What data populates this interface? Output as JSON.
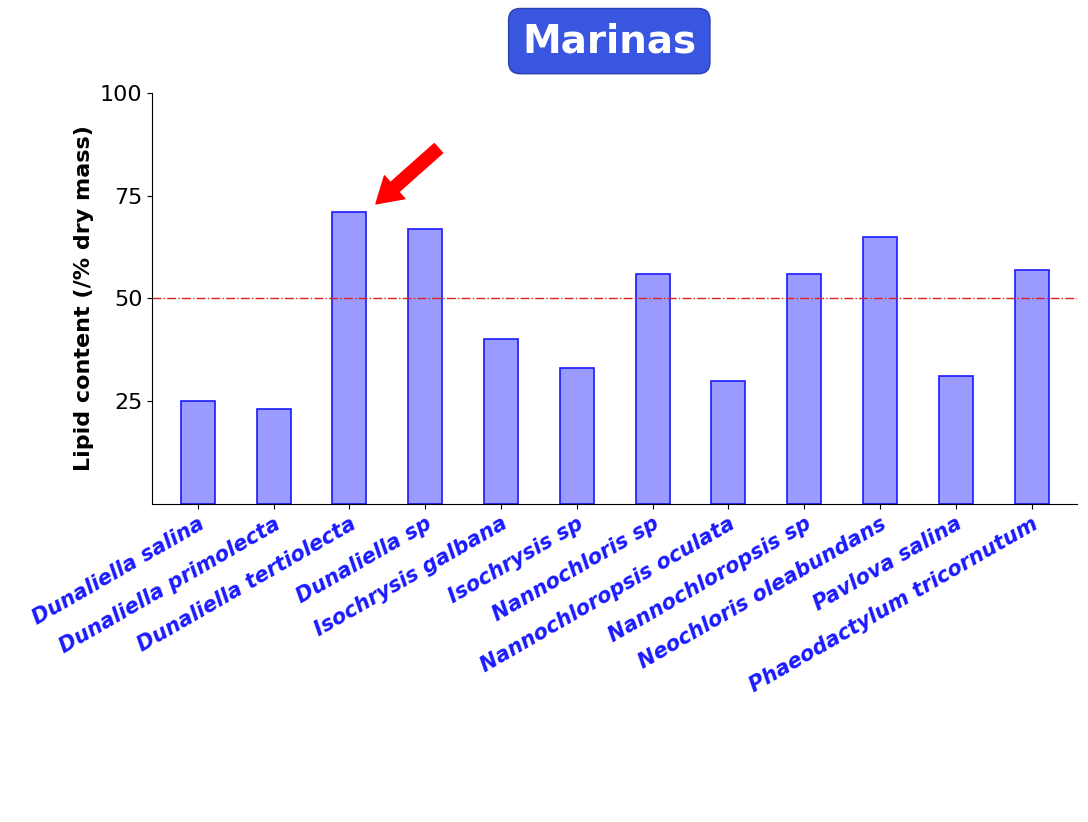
{
  "chart_data": {
    "type": "bar",
    "title": "Marinas",
    "y_label": "Lipid content (/% dry mass)",
    "categories": [
      "Dunaliella salina",
      "Dunaliella primolecta",
      "Dunaliella tertiolecta",
      "Dunaliella sp",
      "Isochrysis galbana",
      "Isochrysis sp",
      "Nannochloris sp",
      "Nannochloropsis oculata",
      "Nannochloropsis sp",
      "Neochloris oleabundans",
      "Pavlova salina",
      "Phaeodactylum tricornutum"
    ],
    "values": [
      25,
      23,
      71,
      67,
      40,
      33,
      56,
      30,
      56,
      65,
      31,
      57
    ],
    "color": "#9a9aff",
    "threshold": 50,
    "highlight": "Dunaliella tertiolecta",
    "ylim": [
      0,
      100
    ],
    "yticks": [
      25,
      50,
      75,
      100
    ],
    "grid": false
  }
}
